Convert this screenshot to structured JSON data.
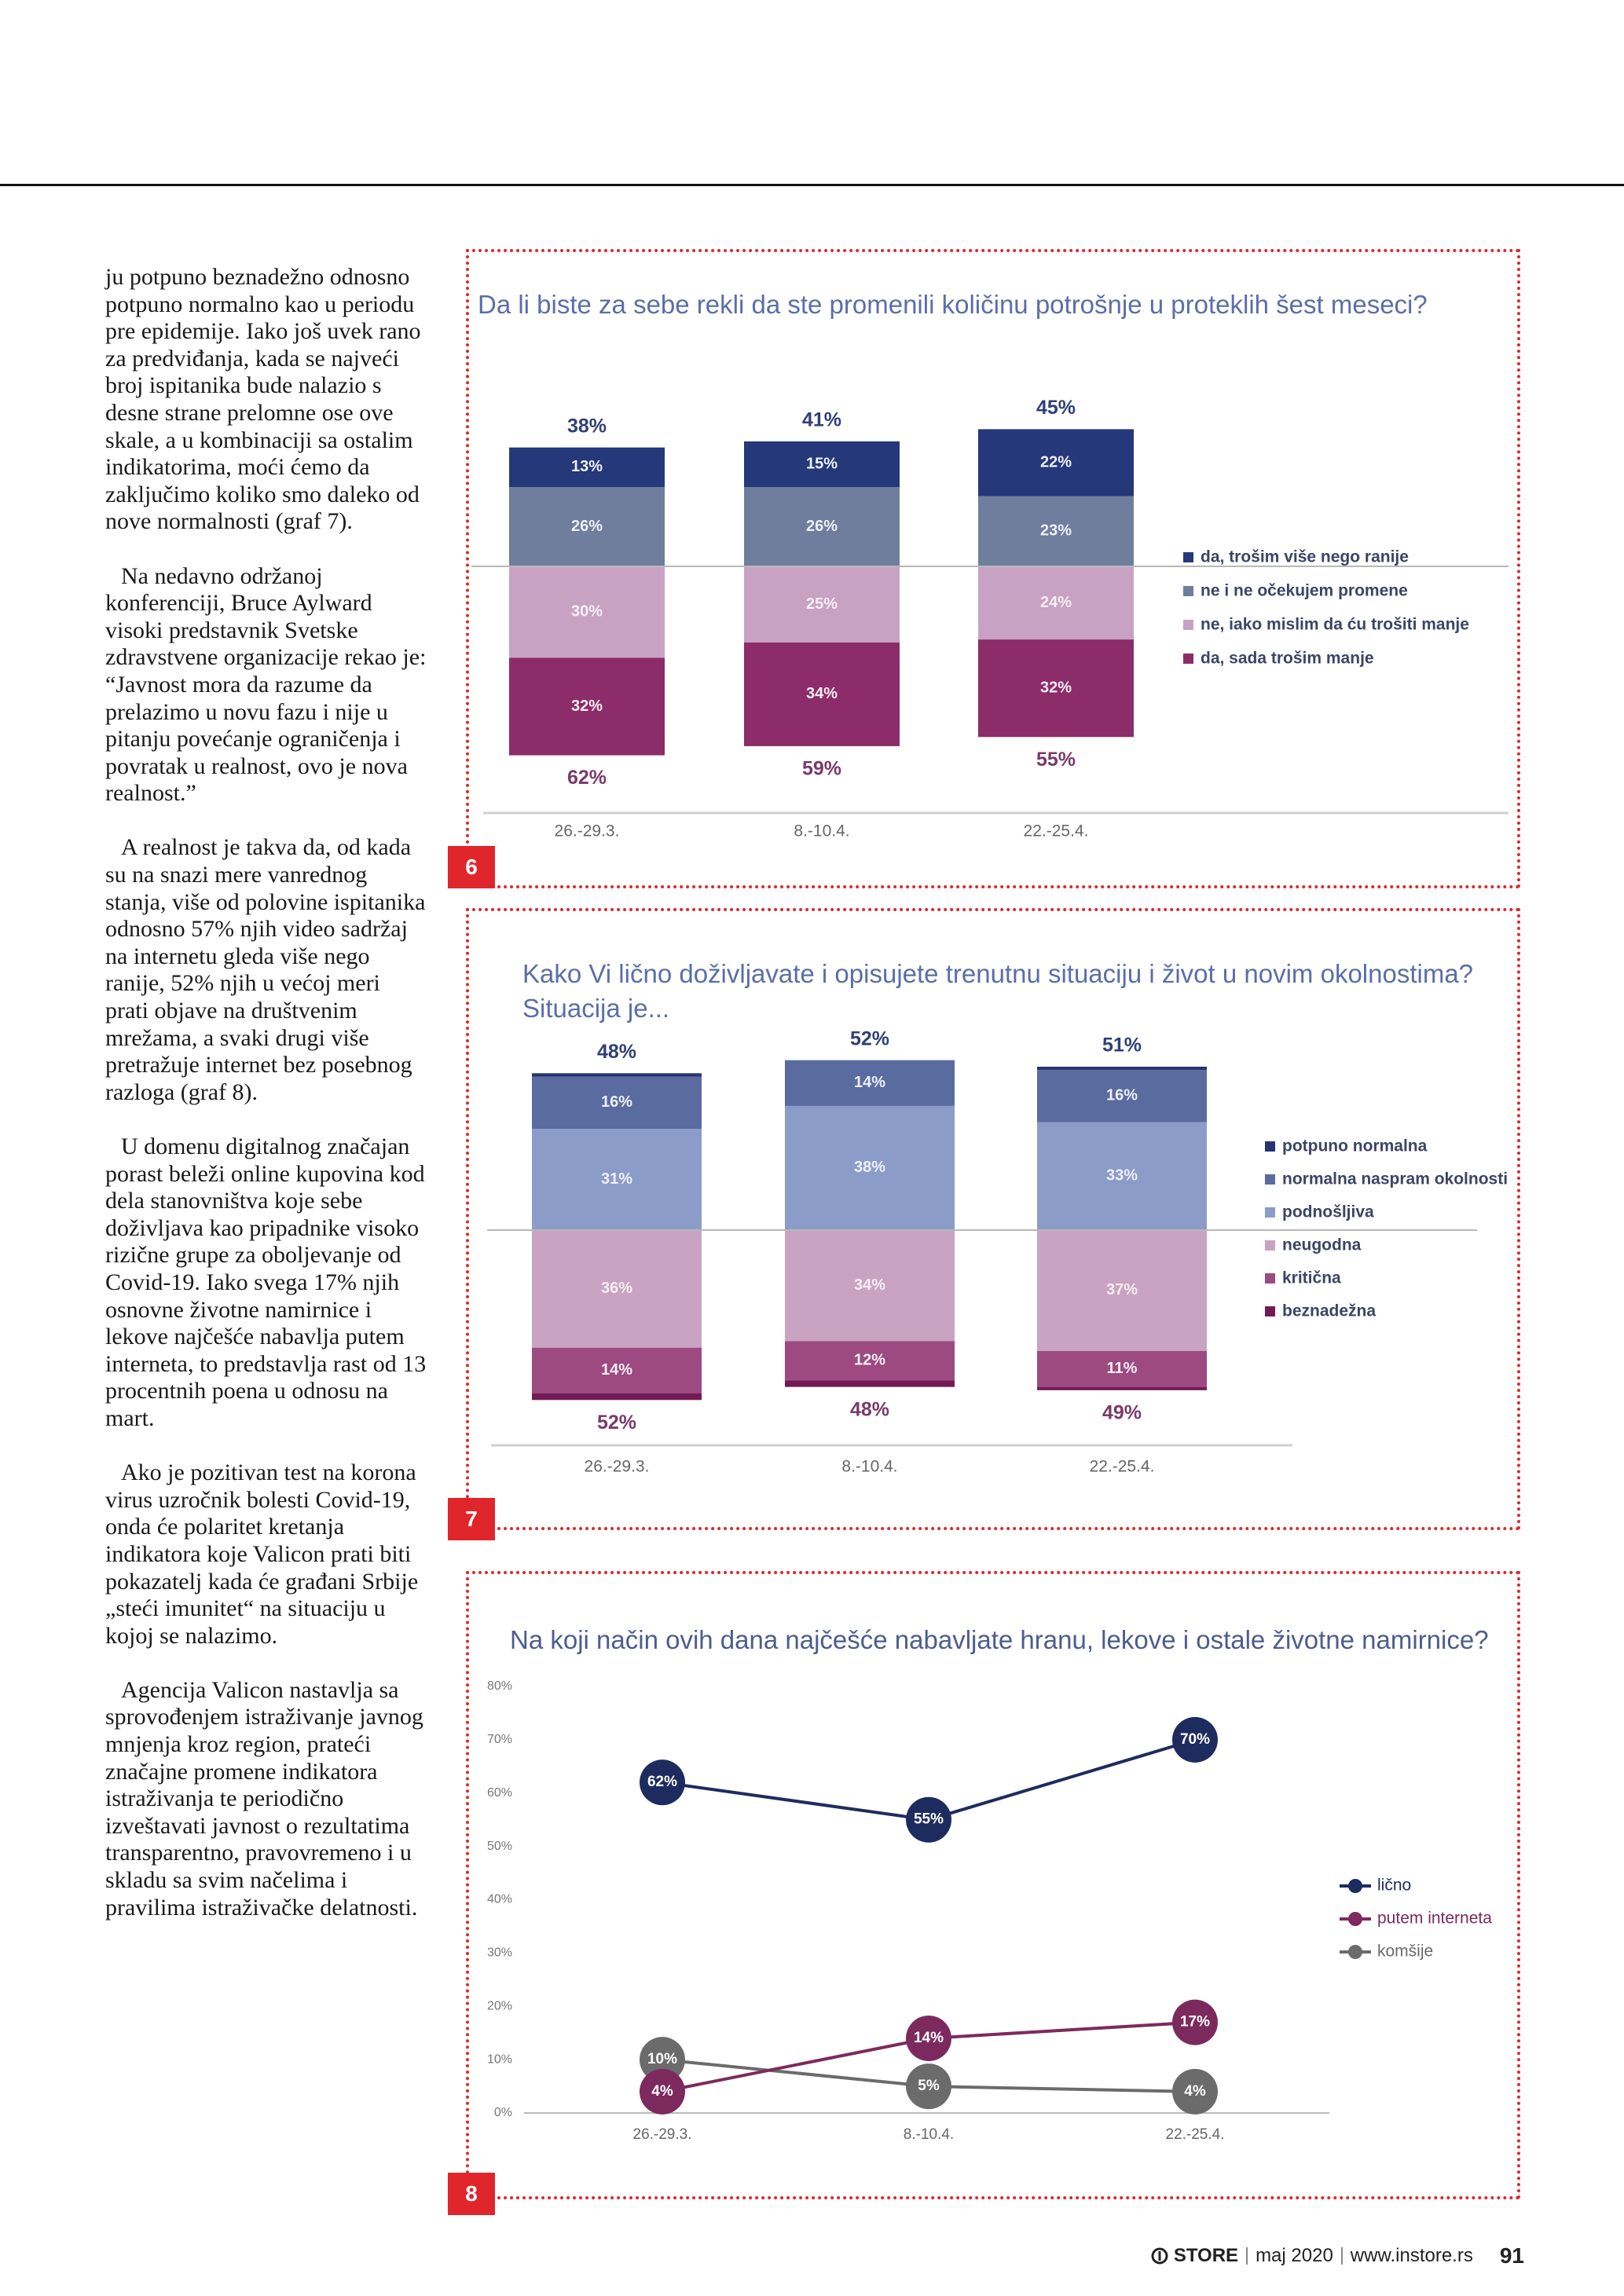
{
  "article": {
    "paragraphs": [
      "ju potpuno beznadežno odnosno potpuno normalno kao u periodu pre epidemije. Iako još uvek rano za predviđanja, kada se najveći broj ispitanika bude nalazio s desne strane prelomne ose ove skale, a u kombinaciji sa ostalim indikatorima, moći ćemo da zaključimo koliko smo daleko od nove normalnosti (graf 7).",
      "Na nedavno održanoj konferenciji, Bruce Aylward visoki predstavnik Svetske zdravstvene organizacije rekao je: “Javnost mora da razume da prelazimo u novu fazu i nije u pitanju povećanje ograničenja i povratak u realnost, ovo je nova realnost.”",
      "A realnost je takva da, od kada su na snazi mere vanrednog stanja, više od polovine ispitanika odnosno 57% njih video sadržaj na internetu gleda više nego ranije, 52% njih u većoj meri prati objave na društvenim mrežama, a svaki drugi više pretražuje internet bez posebnog razloga (graf 8).",
      "U domenu digitalnog značajan porast beleži online kupovina kod dela stanovništva koje sebe doživljava kao pripadnike visoko rizične grupe za oboljevanje od Covid-19. Iako svega 17% njih osnovne životne namirnice i lekove najčešće nabavlja putem interneta, to predstavlja rast od 13 procentnih poena u odnosu na mart.",
      "Ako je pozitivan test na korona virus uzročnik bolesti Covid-19, onda će polaritet kretanja indikatora koje Valicon prati biti pokazatelj kada će građani Srbije „steći imunitet“ na situaciju u kojoj se nalazimo.",
      "Agencija Valicon nastavlja sa sprovođenjem istraživanje javnog mnjenja kroz region, prateći značajne promene indikatora istraživanja te periodično izveštavati javnost o rezultatima transparentno, pravovremeno i u skladu sa svim načelima i pravilima istraživačke delatnosti."
    ]
  },
  "chart_data": [
    {
      "type": "bar",
      "figure_number": "6",
      "title": "Da li biste za sebe rekli da ste promenili količinu potrošnje u proteklih šest meseci?",
      "categories": [
        "26.-29.3.",
        "8.-10.4.",
        "22.-25.4."
      ],
      "legend": "right",
      "series": [
        {
          "name": "da, trošim više nego ranije",
          "color": "#24387a",
          "stack": "up",
          "values": [
            13,
            15,
            22
          ],
          "value_labels": [
            "13%",
            "15%",
            "22%"
          ]
        },
        {
          "name": "ne i ne očekujem promene",
          "color": "#6e7e9c",
          "stack": "up",
          "values": [
            26,
            26,
            23
          ],
          "value_labels": [
            "26%",
            "26%",
            "23%"
          ]
        },
        {
          "name": "ne, iako mislim da ću trošiti manje",
          "color": "#c8a2c2",
          "stack": "down",
          "values": [
            30,
            25,
            24
          ],
          "value_labels": [
            "30%",
            "25%",
            "24%"
          ]
        },
        {
          "name": "da, sada trošim manje",
          "color": "#8c2c69",
          "stack": "down",
          "values": [
            32,
            34,
            32
          ],
          "value_labels": [
            "32%",
            "34%",
            "32%"
          ]
        }
      ],
      "totals_up": {
        "values": [
          38,
          41,
          45
        ],
        "value_labels": [
          "38%",
          "41%",
          "45%"
        ]
      },
      "totals_down": {
        "values": [
          62,
          59,
          55
        ],
        "value_labels": [
          "62%",
          "59%",
          "55%"
        ]
      }
    },
    {
      "type": "bar",
      "figure_number": "7",
      "title": "Kako Vi lično doživljavate i opisujete trenutnu situaciju i život u novim okolnostima? Situacija je...",
      "categories": [
        "26.-29.3.",
        "8.-10.4.",
        "22.-25.4."
      ],
      "legend": "right",
      "series": [
        {
          "name": "potpuno normalna",
          "color": "#26356f",
          "stack": "up",
          "values": [
            1,
            0,
            1
          ],
          "value_labels": [
            null,
            null,
            null
          ]
        },
        {
          "name": "normalna naspram okolnosti",
          "color": "#5a6ba0",
          "stack": "up",
          "values": [
            16,
            14,
            16
          ],
          "value_labels": [
            "16%",
            "14%",
            "16%"
          ]
        },
        {
          "name": "podnošljiva",
          "color": "#8c9cc9",
          "stack": "up",
          "values": [
            31,
            38,
            33
          ],
          "value_labels": [
            "31%",
            "38%",
            "33%"
          ]
        },
        {
          "name": "neugodna",
          "color": "#c9a3c2",
          "stack": "down",
          "values": [
            36,
            34,
            37
          ],
          "value_labels": [
            "36%",
            "34%",
            "37%"
          ]
        },
        {
          "name": "kritična",
          "color": "#9c4a80",
          "stack": "down",
          "values": [
            14,
            12,
            11
          ],
          "value_labels": [
            "14%",
            "12%",
            "11%"
          ]
        },
        {
          "name": "beznadežna",
          "color": "#731a56",
          "stack": "down",
          "values": [
            2,
            2,
            1
          ],
          "value_labels": [
            null,
            null,
            null
          ]
        }
      ],
      "totals_up": {
        "values": [
          48,
          52,
          51
        ],
        "value_labels": [
          "48%",
          "52%",
          "51%"
        ]
      },
      "totals_down": {
        "values": [
          52,
          48,
          49
        ],
        "value_labels": [
          "52%",
          "48%",
          "49%"
        ]
      }
    },
    {
      "type": "line",
      "figure_number": "8",
      "title": "Na koji način ovih dana najčešće nabavljate hranu, lekove i ostale životne namirnice?",
      "categories": [
        "26.-29.3.",
        "8.-10.4.",
        "22.-25.4."
      ],
      "legend": "right",
      "ylim": [
        0,
        80
      ],
      "yticks": [
        {
          "value": 0,
          "label": "0%"
        },
        {
          "value": 10,
          "label": "10%"
        },
        {
          "value": 20,
          "label": "20%"
        },
        {
          "value": 30,
          "label": "30%"
        },
        {
          "value": 40,
          "label": "40%"
        },
        {
          "value": 50,
          "label": "50%"
        },
        {
          "value": 60,
          "label": "60%"
        },
        {
          "value": 70,
          "label": "70%"
        },
        {
          "value": 80,
          "label": "80%"
        }
      ],
      "series": [
        {
          "name": "lično",
          "color": "#1e2b5e",
          "values": [
            62,
            55,
            70
          ],
          "value_labels": [
            "62%",
            "55%",
            "70%"
          ]
        },
        {
          "name": "putem interneta",
          "color": "#7c2a5e",
          "values": [
            4,
            14,
            17
          ],
          "value_labels": [
            "4%",
            "14%",
            "17%"
          ]
        },
        {
          "name": "komšije",
          "color": "#6b6b6b",
          "values": [
            10,
            5,
            4
          ],
          "value_labels": [
            "10%",
            "5%",
            "4%"
          ]
        }
      ]
    }
  ],
  "footer": {
    "brand": "STORE",
    "date": "maj 2020",
    "url": "www.instore.rs",
    "page": "91"
  }
}
